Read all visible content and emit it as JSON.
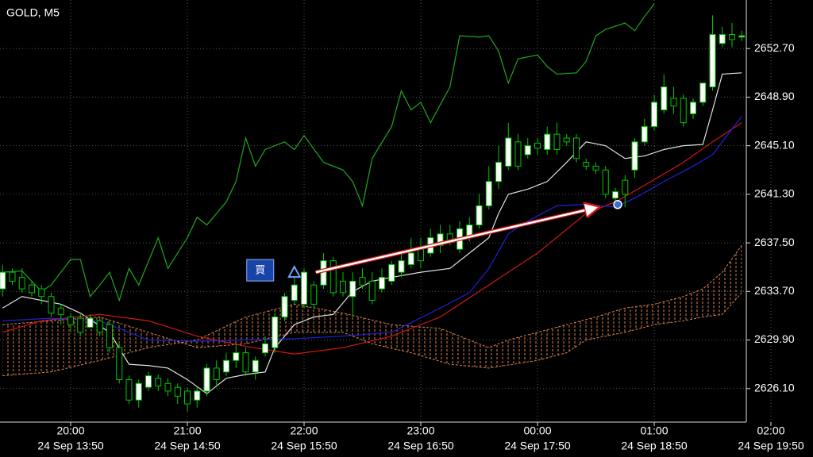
{
  "chart_data": {
    "type": "candlestick",
    "title": "GOLD, M5",
    "categories": [
      null,
      null,
      null,
      null,
      null,
      null,
      null,
      "24 Sep 13:50",
      null,
      null,
      null,
      null,
      null,
      null,
      null,
      null,
      null,
      null,
      null,
      "24 Sep 14:50",
      null,
      null,
      null,
      null,
      null,
      null,
      null,
      null,
      null,
      null,
      null,
      "24 Sep 15:50",
      null,
      null,
      null,
      null,
      null,
      null,
      null,
      null,
      null,
      null,
      null,
      "24 Sep 16:50",
      null,
      null,
      null,
      null,
      null,
      null,
      null,
      null,
      null,
      null,
      null,
      "24 Sep 17:50",
      null,
      null,
      null,
      null,
      null,
      null,
      null,
      null,
      null,
      null,
      null,
      "24 Sep 18:50",
      null,
      null,
      null,
      null,
      null,
      null,
      null,
      null,
      null,
      null,
      null,
      "24 Sep 19:50"
    ],
    "time_labels": [
      null,
      null,
      null,
      null,
      null,
      null,
      null,
      "20:00",
      null,
      null,
      null,
      null,
      null,
      null,
      null,
      null,
      null,
      null,
      null,
      "21:00",
      null,
      null,
      null,
      null,
      null,
      null,
      null,
      null,
      null,
      null,
      null,
      "22:00",
      null,
      null,
      null,
      null,
      null,
      null,
      null,
      null,
      null,
      null,
      null,
      "23:00",
      null,
      null,
      null,
      null,
      null,
      null,
      null,
      null,
      null,
      null,
      null,
      "00:00",
      null,
      null,
      null,
      null,
      null,
      null,
      null,
      null,
      null,
      null,
      null,
      "01:00",
      null,
      null,
      null,
      null,
      null,
      null,
      null,
      null,
      null,
      null,
      null,
      "02:00"
    ],
    "open": [
      2633.9,
      2635.2,
      2634.8,
      2634.2,
      2633.9,
      2633.3,
      2632.4,
      2631.7,
      2631.6,
      2630.9,
      2631.4,
      2631.1,
      2629.3,
      2626.8,
      2625.2,
      2626.2,
      2626.9,
      2626.5,
      2626.2,
      2625.9,
      2625.2,
      2625.9,
      2627.7,
      2627.4,
      2628.3,
      2628.9,
      2627.4,
      2628.9,
      2629.3,
      2631.7,
      2633.0,
      2632.7,
      2634.2,
      2634.2,
      2636.1,
      2634.5,
      2633.3,
      2634.8,
      2634.5,
      2633.9,
      2634.5,
      2635.2,
      2635.8,
      2637.0,
      2636.7,
      2637.3,
      2638.2,
      2637.0,
      2637.9,
      2638.9,
      2640.4,
      2642.3,
      2643.5,
      2645.4,
      2644.4,
      2645.3,
      2644.8,
      2646.0,
      2645.7,
      2645.7,
      2643.8,
      2643.5,
      2643.2,
      2641.0,
      2642.4,
      2643.2,
      2645.4,
      2646.6,
      2647.9,
      2648.8,
      2648.8,
      2647.6,
      2648.5,
      2649.7,
      2653.1,
      2653.8,
      2653.6,
      null,
      null,
      null
    ],
    "high": [
      2635.8,
      2635.5,
      2635.5,
      2634.5,
      2634.2,
      2633.6,
      2632.7,
      2632.0,
      2632.0,
      2631.9,
      2631.7,
      2631.4,
      2629.6,
      2627.1,
      2626.8,
      2627.4,
      2627.2,
      2626.9,
      2626.5,
      2626.2,
      2626.2,
      2628.0,
      2628.3,
      2628.9,
      2629.6,
      2629.3,
      2628.6,
      2630.2,
      2632.0,
      2633.6,
      2634.8,
      2635.5,
      2634.5,
      2636.7,
      2636.4,
      2635.2,
      2635.2,
      2635.5,
      2635.2,
      2635.5,
      2636.1,
      2636.7,
      2637.9,
      2637.9,
      2638.6,
      2638.9,
      2638.9,
      2639.2,
      2639.5,
      2641.3,
      2643.5,
      2645.1,
      2646.9,
      2646.0,
      2645.7,
      2645.7,
      2646.6,
      2646.9,
      2646.0,
      2646.0,
      2644.1,
      2643.8,
      2643.5,
      2641.8,
      2642.8,
      2645.7,
      2647.2,
      2649.1,
      2650.7,
      2649.7,
      2649.1,
      2648.8,
      2650.0,
      2655.3,
      2654.4,
      2654.7,
      2654.1,
      null,
      null,
      null
    ],
    "low": [
      2633.3,
      2634.2,
      2633.6,
      2633.3,
      2632.7,
      2631.7,
      2631.1,
      2630.5,
      2630.2,
      2630.8,
      2630.2,
      2628.9,
      2626.5,
      2624.9,
      2624.6,
      2625.9,
      2625.9,
      2625.5,
      2624.9,
      2624.3,
      2624.6,
      2625.5,
      2626.2,
      2627.1,
      2627.7,
      2627.1,
      2626.8,
      2628.6,
      2628.9,
      2631.4,
      2632.7,
      2632.4,
      2632.4,
      2633.9,
      2633.3,
      2633.3,
      2631.7,
      2633.9,
      2632.7,
      2633.6,
      2634.2,
      2634.8,
      2635.5,
      2635.5,
      2636.4,
      2636.7,
      2637.3,
      2636.7,
      2637.6,
      2638.6,
      2640.1,
      2641.7,
      2643.2,
      2643.2,
      2644.1,
      2644.4,
      2644.4,
      2644.4,
      2645.1,
      2643.8,
      2643.2,
      2642.9,
      2641.0,
      2640.4,
      2640.3,
      2642.6,
      2645.1,
      2646.3,
      2647.6,
      2647.6,
      2646.6,
      2647.2,
      2648.2,
      2649.4,
      2652.8,
      2652.8,
      2653.3,
      null,
      null,
      null
    ],
    "close": [
      2635.2,
      2634.5,
      2633.9,
      2633.6,
      2633.3,
      2632.0,
      2631.9,
      2631.1,
      2630.5,
      2631.6,
      2630.5,
      2629.3,
      2626.8,
      2625.2,
      2626.5,
      2627.1,
      2626.3,
      2625.9,
      2625.5,
      2624.9,
      2625.9,
      2627.7,
      2626.8,
      2628.3,
      2628.9,
      2627.4,
      2628.3,
      2629.6,
      2631.7,
      2633.3,
      2634.2,
      2635.2,
      2632.7,
      2636.1,
      2633.6,
      2633.6,
      2634.5,
      2634.2,
      2633.0,
      2634.8,
      2635.8,
      2636.1,
      2636.7,
      2636.1,
      2637.9,
      2638.2,
      2637.6,
      2638.6,
      2638.9,
      2640.4,
      2642.3,
      2643.8,
      2645.7,
      2643.5,
      2645.1,
      2644.9,
      2646.0,
      2644.8,
      2645.4,
      2644.1,
      2643.5,
      2643.2,
      2641.3,
      2641.5,
      2641.3,
      2645.4,
      2646.6,
      2648.5,
      2649.7,
      2648.2,
      2646.9,
      2648.5,
      2650.0,
      2653.8,
      2653.8,
      2653.4,
      2653.7,
      null,
      null,
      null
    ],
    "up_color": "#ffffff",
    "down_color": "#000000",
    "wick_color": "#00c800",
    "ylim": [
      2623.6,
      2656.5
    ],
    "yticks": [
      {
        "value": 2626.1,
        "label": "2626.10"
      },
      {
        "value": 2629.9,
        "label": "2629.90"
      },
      {
        "value": 2633.7,
        "label": "2633.70"
      },
      {
        "value": 2637.5,
        "label": "2637.50"
      },
      {
        "value": 2641.3,
        "label": "2641.30"
      },
      {
        "value": 2645.1,
        "label": "2645.10"
      },
      {
        "value": 2648.9,
        "label": "2648.90"
      },
      {
        "value": 2652.7,
        "label": "2652.70"
      }
    ],
    "grid": true,
    "lines": [
      {
        "color": "#1fa81f",
        "x": [
          0,
          2,
          4,
          5,
          7,
          8,
          9,
          10,
          11,
          12,
          13,
          14,
          16,
          17,
          19,
          20,
          21,
          23,
          24,
          25,
          26,
          27,
          29,
          30,
          31,
          33,
          35,
          36,
          37,
          38,
          40,
          41,
          42,
          43,
          44,
          46,
          47,
          49,
          50,
          51,
          52,
          53,
          55,
          56,
          57,
          59,
          60,
          61,
          62,
          64,
          65,
          66,
          67
        ],
        "values": [
          2635.2,
          2635.3,
          2633.7,
          2634.2,
          2636.2,
          2636.2,
          2633.3,
          2634.2,
          2635.2,
          2633.0,
          2635.5,
          2634.2,
          2637.9,
          2635.5,
          2637.9,
          2639.5,
          2638.9,
          2640.7,
          2642.3,
          2645.7,
          2643.5,
          2644.8,
          2645.4,
          2644.8,
          2645.9,
          2643.8,
          2643.2,
          2642.3,
          2640.4,
          2644.1,
          2646.6,
          2649.4,
          2647.9,
          2648.5,
          2646.9,
          2649.7,
          2653.7,
          2653.6,
          2653.7,
          2652.5,
          2650.0,
          2651.9,
          2652.2,
          2651.3,
          2650.7,
          2650.8,
          2651.7,
          2653.7,
          2654.2,
          2654.7,
          2654.1,
          2655.2,
          2656.2
        ]
      },
      {
        "color": "#e0e0e0",
        "x": [
          0,
          2,
          6,
          8,
          11,
          13,
          15,
          17,
          19,
          21,
          23,
          25,
          27,
          28,
          30,
          32,
          34,
          36,
          38,
          40,
          43,
          46,
          48,
          50,
          51,
          52,
          54,
          56,
          58,
          60,
          62,
          64,
          66,
          68,
          70,
          72,
          73,
          74,
          76
        ],
        "values": [
          2632.4,
          2633.3,
          2632.7,
          2632.0,
          2630.5,
          2628.0,
          2627.9,
          2627.7,
          2626.8,
          2625.7,
          2626.9,
          2627.2,
          2627.4,
          2629.3,
          2631.1,
          2631.7,
          2631.9,
          2633.7,
          2634.5,
          2634.8,
          2635.2,
          2635.5,
          2636.7,
          2637.9,
          2639.8,
          2641.3,
          2641.7,
          2642.3,
          2643.8,
          2645.4,
          2645.1,
          2644.1,
          2644.3,
          2644.8,
          2645.1,
          2645.2,
          2647.9,
          2650.7,
          2650.8
        ]
      },
      {
        "color": "#d01818",
        "x": [
          0,
          4,
          10,
          15,
          20,
          25,
          30,
          35,
          40,
          45,
          50,
          55,
          60,
          63,
          66,
          70,
          73,
          76
        ],
        "values": [
          2630.5,
          2631.4,
          2631.9,
          2631.4,
          2630.2,
          2629.4,
          2628.8,
          2629.3,
          2630.2,
          2631.7,
          2634.2,
          2636.7,
          2639.8,
          2640.7,
          2642.0,
          2643.8,
          2645.4,
          2646.9
        ]
      },
      {
        "color": "#2020d8",
        "x": [
          0,
          5,
          10,
          15,
          20,
          25,
          30,
          35,
          40,
          45,
          48,
          50,
          52,
          54,
          57,
          60,
          63,
          65,
          68,
          71,
          73,
          76
        ],
        "values": [
          2631.4,
          2631.6,
          2631.4,
          2629.9,
          2629.8,
          2629.9,
          2630.0,
          2630.2,
          2630.5,
          2632.4,
          2633.6,
          2635.5,
          2638.2,
          2639.2,
          2640.4,
          2640.5,
          2640.3,
          2641.0,
          2642.3,
          2643.5,
          2644.4,
          2647.4
        ]
      }
    ],
    "cloud": {
      "color": "#d9824a",
      "span_a": {
        "x": [
          0,
          5,
          10,
          15,
          20,
          25,
          30,
          35,
          40,
          45,
          48,
          50,
          52,
          55,
          58,
          61,
          64,
          67,
          70,
          72,
          74,
          76
        ],
        "values": [
          2627.1,
          2627.4,
          2628.3,
          2629.3,
          2629.9,
          2631.7,
          2632.7,
          2632.0,
          2631.1,
          2630.8,
          2629.9,
          2629.3,
          2629.9,
          2630.5,
          2631.1,
          2631.7,
          2632.4,
          2632.7,
          2633.3,
          2633.9,
          2635.2,
          2637.3
        ]
      },
      "span_b": {
        "x": [
          0,
          5,
          10,
          15,
          20,
          25,
          30,
          35,
          38,
          42,
          46,
          50,
          55,
          58,
          60,
          64,
          67,
          70,
          72,
          74,
          76
        ],
        "values": [
          2631.1,
          2631.4,
          2631.7,
          2630.5,
          2629.3,
          2629.6,
          2630.5,
          2630.5,
          2629.6,
          2628.9,
          2628.0,
          2627.7,
          2628.3,
          2628.9,
          2629.9,
          2630.5,
          2631.1,
          2631.4,
          2631.7,
          2631.9,
          2633.6
        ]
      }
    },
    "trade": {
      "label": "買",
      "open_x": 30,
      "open_price": 2635.2,
      "close_x": 63,
      "close_price": 2640.5
    }
  }
}
